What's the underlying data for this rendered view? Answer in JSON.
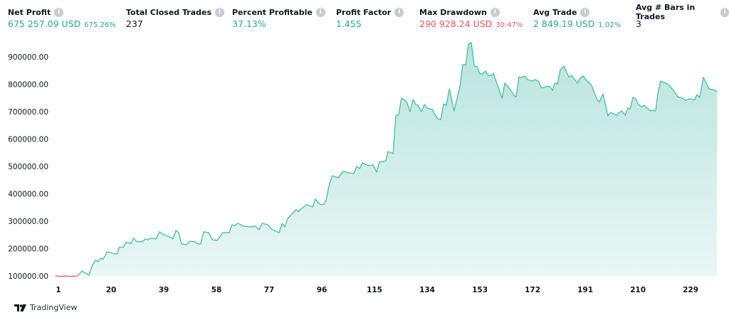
{
  "stats": [
    {
      "label": "Net Profit",
      "value": "675 257.09 USD",
      "pct": "675.26%",
      "tone": "pos"
    },
    {
      "label": "Total Closed Trades",
      "value": "237",
      "pct": "",
      "tone": "neu"
    },
    {
      "label": "Percent Profitable",
      "value": "37.13%",
      "pct": "",
      "tone": "pos"
    },
    {
      "label": "Profit Factor",
      "value": "1.455",
      "pct": "",
      "tone": "pos"
    },
    {
      "label": "Max Drawdown",
      "value": "290 928.24 USD",
      "pct": "30.47%",
      "tone": "neg"
    },
    {
      "label": "Avg Trade",
      "value": "2 849.19 USD",
      "pct": "1.02%",
      "tone": "pos"
    },
    {
      "label": "Avg # Bars in Trades",
      "value": "3",
      "pct": "",
      "tone": "neu"
    }
  ],
  "info_icon": "info-icon",
  "branding": {
    "name": "TradingView"
  },
  "colors": {
    "profit": "#22ab94",
    "loss": "#f7525f",
    "line": "#3fbfa3",
    "fill": "#22ab94"
  },
  "chart_data": {
    "type": "area",
    "ylim": [
      100000,
      900000
    ],
    "y_ticks": [
      "100000.00",
      "200000.00",
      "300000.00",
      "400000.00",
      "500000.00",
      "600000.00",
      "700000.00",
      "800000.00",
      "900000.00"
    ],
    "x_ticks": [
      "1",
      "20",
      "39",
      "58",
      "77",
      "96",
      "115",
      "134",
      "153",
      "172",
      "191",
      "210",
      "229"
    ],
    "grid": false,
    "initial_capital": 100000,
    "points": [
      [
        0,
        100000
      ],
      [
        2,
        98500
      ],
      [
        4,
        99500
      ],
      [
        5,
        98000
      ],
      [
        6,
        98500
      ],
      [
        8,
        100000
      ],
      [
        9.5,
        118000
      ],
      [
        12,
        103000
      ],
      [
        13.3,
        139000
      ],
      [
        14.4,
        157000
      ],
      [
        15.4,
        152000
      ],
      [
        16.4,
        165000
      ],
      [
        17.2,
        162000
      ],
      [
        18.5,
        186000
      ],
      [
        19.2,
        188000
      ],
      [
        21,
        181000
      ],
      [
        22.3,
        181000
      ],
      [
        23,
        206000
      ],
      [
        24.4,
        204000
      ],
      [
        25.4,
        222000
      ],
      [
        27.2,
        219000
      ],
      [
        28.2,
        238000
      ],
      [
        29.2,
        225000
      ],
      [
        31.3,
        225000
      ],
      [
        32.3,
        235000
      ],
      [
        33.3,
        232000
      ],
      [
        34.4,
        238000
      ],
      [
        36.2,
        235000
      ],
      [
        37.5,
        261000
      ],
      [
        38.5,
        253000
      ],
      [
        41.1,
        243000
      ],
      [
        42.3,
        235000
      ],
      [
        43.4,
        266000
      ],
      [
        44.4,
        258000
      ],
      [
        45.4,
        217000
      ],
      [
        47.2,
        214000
      ],
      [
        48.5,
        227000
      ],
      [
        50,
        225000
      ],
      [
        51.3,
        217000
      ],
      [
        52.3,
        217000
      ],
      [
        53.4,
        261000
      ],
      [
        55.2,
        258000
      ],
      [
        56.5,
        232000
      ],
      [
        58.3,
        230000
      ],
      [
        60.3,
        258000
      ],
      [
        62.6,
        258000
      ],
      [
        63.6,
        287000
      ],
      [
        64.7,
        284000
      ],
      [
        65.7,
        292000
      ],
      [
        67.8,
        282000
      ],
      [
        70.6,
        279000
      ],
      [
        71.9,
        282000
      ],
      [
        73.4,
        269000
      ],
      [
        74.5,
        292000
      ],
      [
        76.5,
        287000
      ],
      [
        77.8,
        271000
      ],
      [
        80.6,
        258000
      ],
      [
        81.7,
        292000
      ],
      [
        82.7,
        279000
      ],
      [
        83.7,
        310000
      ],
      [
        86,
        334000
      ],
      [
        86.8,
        342000
      ],
      [
        87.5,
        334000
      ],
      [
        88.8,
        347000
      ],
      [
        90.6,
        360000
      ],
      [
        92.7,
        352000
      ],
      [
        93.7,
        380000
      ],
      [
        94.7,
        367000
      ],
      [
        95.7,
        360000
      ],
      [
        96.8,
        362000
      ],
      [
        97.5,
        375000
      ],
      [
        98.8,
        438000
      ],
      [
        99.8,
        466000
      ],
      [
        101.9,
        458000
      ],
      [
        103.7,
        482000
      ],
      [
        105.5,
        477000
      ],
      [
        107.5,
        474000
      ],
      [
        108.6,
        500000
      ],
      [
        109.6,
        492000
      ],
      [
        110.6,
        513000
      ],
      [
        112.7,
        503000
      ],
      [
        114.5,
        505000
      ],
      [
        115.8,
        479000
      ],
      [
        116.8,
        516000
      ],
      [
        118.3,
        518000
      ],
      [
        119.1,
        521000
      ],
      [
        119.9,
        554000
      ],
      [
        121.7,
        547000
      ],
      [
        122.7,
        687000
      ],
      [
        123.7,
        687000
      ],
      [
        124.7,
        749000
      ],
      [
        125.8,
        744000
      ],
      [
        126.8,
        731000
      ],
      [
        127.8,
        700000
      ],
      [
        128.9,
        744000
      ],
      [
        129.9,
        726000
      ],
      [
        130.7,
        723000
      ],
      [
        131.9,
        700000
      ],
      [
        133,
        726000
      ],
      [
        134,
        713000
      ],
      [
        135.8,
        708000
      ],
      [
        137.1,
        684000
      ],
      [
        137.8,
        674000
      ],
      [
        138.9,
        671000
      ],
      [
        139.9,
        728000
      ],
      [
        140.9,
        723000
      ],
      [
        142,
        783000
      ],
      [
        143.7,
        703000
      ],
      [
        145.8,
        791000
      ],
      [
        146.8,
        871000
      ],
      [
        147.9,
        871000
      ],
      [
        148.9,
        947000
      ],
      [
        149.9,
        952000
      ],
      [
        151,
        866000
      ],
      [
        152,
        864000
      ],
      [
        153,
        838000
      ],
      [
        154,
        838000
      ],
      [
        155,
        848000
      ],
      [
        156.1,
        832000
      ],
      [
        157.1,
        832000
      ],
      [
        157.9,
        840000
      ],
      [
        161,
        749000
      ],
      [
        162,
        804000
      ],
      [
        163.8,
        783000
      ],
      [
        165.3,
        760000
      ],
      [
        166.1,
        754000
      ],
      [
        167.1,
        827000
      ],
      [
        168.1,
        825000
      ],
      [
        169.2,
        830000
      ],
      [
        170.2,
        817000
      ],
      [
        171.2,
        814000
      ],
      [
        172,
        812000
      ],
      [
        173,
        817000
      ],
      [
        174.3,
        809000
      ],
      [
        175.1,
        788000
      ],
      [
        176.1,
        788000
      ],
      [
        177.1,
        793000
      ],
      [
        178.2,
        791000
      ],
      [
        179.2,
        778000
      ],
      [
        180,
        804000
      ],
      [
        181,
        801000
      ],
      [
        182,
        853000
      ],
      [
        183.3,
        866000
      ],
      [
        185.1,
        827000
      ],
      [
        186.1,
        832000
      ],
      [
        188.2,
        804000
      ],
      [
        189.2,
        822000
      ],
      [
        190.2,
        830000
      ],
      [
        191.2,
        817000
      ],
      [
        193.3,
        796000
      ],
      [
        195.1,
        747000
      ],
      [
        196.1,
        736000
      ],
      [
        197.4,
        765000
      ],
      [
        199.2,
        684000
      ],
      [
        200.2,
        697000
      ],
      [
        202.3,
        687000
      ],
      [
        204.1,
        703000
      ],
      [
        205.4,
        687000
      ],
      [
        206.4,
        713000
      ],
      [
        207.2,
        710000
      ],
      [
        208.2,
        752000
      ],
      [
        209.2,
        747000
      ],
      [
        210.2,
        726000
      ],
      [
        211.3,
        718000
      ],
      [
        212.3,
        723000
      ],
      [
        213.6,
        710000
      ],
      [
        214.6,
        703000
      ],
      [
        215.4,
        705000
      ],
      [
        216.4,
        703000
      ],
      [
        217.2,
        767000
      ],
      [
        218.2,
        812000
      ],
      [
        221,
        799000
      ],
      [
        222.6,
        780000
      ],
      [
        224.4,
        754000
      ],
      [
        225.4,
        752000
      ],
      [
        227.2,
        741000
      ],
      [
        228.5,
        747000
      ],
      [
        230.5,
        744000
      ],
      [
        231.3,
        762000
      ],
      [
        232.3,
        752000
      ],
      [
        233.6,
        825000
      ],
      [
        234.4,
        809000
      ],
      [
        235.7,
        783000
      ],
      [
        237.2,
        780000
      ],
      [
        238.5,
        775000
      ]
    ]
  }
}
